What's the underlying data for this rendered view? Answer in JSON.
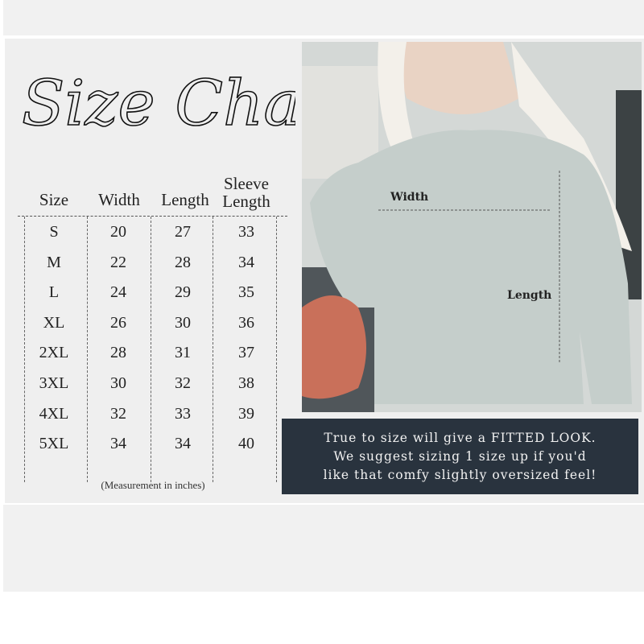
{
  "title": "Size Chart",
  "table": {
    "headers": [
      "Size",
      "Width",
      "Length",
      "Sleeve Length"
    ],
    "header_lines": {
      "sleeve_top": "Sleeve",
      "sleeve_bottom": "Length"
    },
    "rows": [
      [
        "S",
        "20",
        "27",
        "33"
      ],
      [
        "M",
        "22",
        "28",
        "34"
      ],
      [
        "L",
        "24",
        "29",
        "35"
      ],
      [
        "XL",
        "26",
        "30",
        "36"
      ],
      [
        "2XL",
        "28",
        "31",
        "37"
      ],
      [
        "3XL",
        "30",
        "32",
        "38"
      ],
      [
        "4XL",
        "32",
        "33",
        "39"
      ],
      [
        "5XL",
        "34",
        "34",
        "40"
      ]
    ],
    "note": "(Measurement in inches)"
  },
  "photo": {
    "width_label": "Width",
    "length_label": "Length"
  },
  "message": {
    "lines": [
      "True to size will give a FITTED LOOK.",
      "We suggest sizing 1 size up if you'd",
      "like that comfy slightly oversized feel!"
    ],
    "background": "#29333e"
  }
}
